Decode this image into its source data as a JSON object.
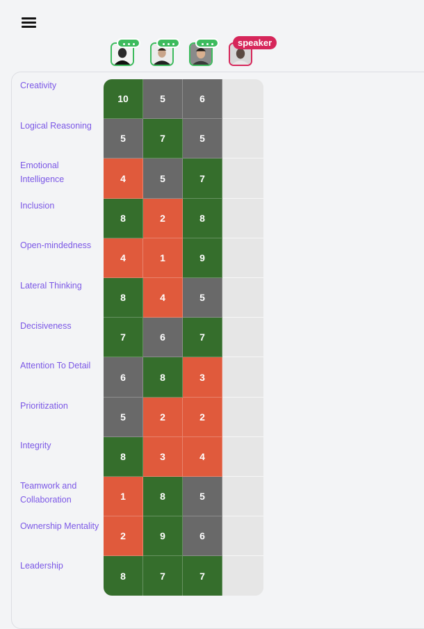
{
  "header": {
    "menu_icon": "hamburger-menu-icon"
  },
  "participants": [
    {
      "status": "typing",
      "icon": "person-avatar"
    },
    {
      "status": "typing",
      "icon": "person-avatar"
    },
    {
      "status": "typing",
      "icon": "person-avatar"
    },
    {
      "status": "speaker",
      "badge": "speaker",
      "icon": "person-avatar"
    }
  ],
  "colors": {
    "high": "#356e2c",
    "neutral": "#696969",
    "low": "#e05a3c",
    "empty": "#e6e6e6",
    "label": "#7b57e6",
    "online_ring": "#3dbb5d",
    "speaker_ring": "#d6265a"
  },
  "traits": [
    {
      "label": "Creativity",
      "scores": [
        "10",
        "5",
        "6"
      ],
      "levels": [
        "g",
        "n",
        "n"
      ]
    },
    {
      "label": "Logical Reasoning",
      "scores": [
        "5",
        "7",
        "5"
      ],
      "levels": [
        "n",
        "g",
        "n"
      ]
    },
    {
      "label": "Emotional Intelligence",
      "scores": [
        "4",
        "5",
        "7"
      ],
      "levels": [
        "r",
        "n",
        "g"
      ]
    },
    {
      "label": "Inclusion",
      "scores": [
        "8",
        "2",
        "8"
      ],
      "levels": [
        "g",
        "r",
        "g"
      ]
    },
    {
      "label": "Open-mindedness",
      "scores": [
        "4",
        "1",
        "9"
      ],
      "levels": [
        "r",
        "r",
        "g"
      ]
    },
    {
      "label": "Lateral Thinking",
      "scores": [
        "8",
        "4",
        "5"
      ],
      "levels": [
        "g",
        "r",
        "n"
      ]
    },
    {
      "label": "Decisiveness",
      "scores": [
        "7",
        "6",
        "7"
      ],
      "levels": [
        "g",
        "n",
        "g"
      ]
    },
    {
      "label": "Attention To Detail",
      "scores": [
        "6",
        "8",
        "3"
      ],
      "levels": [
        "n",
        "g",
        "r"
      ]
    },
    {
      "label": "Prioritization",
      "scores": [
        "5",
        "2",
        "2"
      ],
      "levels": [
        "n",
        "r",
        "r"
      ]
    },
    {
      "label": "Integrity",
      "scores": [
        "8",
        "3",
        "4"
      ],
      "levels": [
        "g",
        "r",
        "r"
      ]
    },
    {
      "label": "Teamwork and Collaboration",
      "scores": [
        "1",
        "8",
        "5"
      ],
      "levels": [
        "r",
        "g",
        "n"
      ]
    },
    {
      "label": "Ownership Mentality",
      "scores": [
        "2",
        "9",
        "6"
      ],
      "levels": [
        "r",
        "g",
        "n"
      ]
    },
    {
      "label": "Leadership",
      "scores": [
        "8",
        "7",
        "7"
      ],
      "levels": [
        "g",
        "g",
        "g"
      ]
    }
  ]
}
